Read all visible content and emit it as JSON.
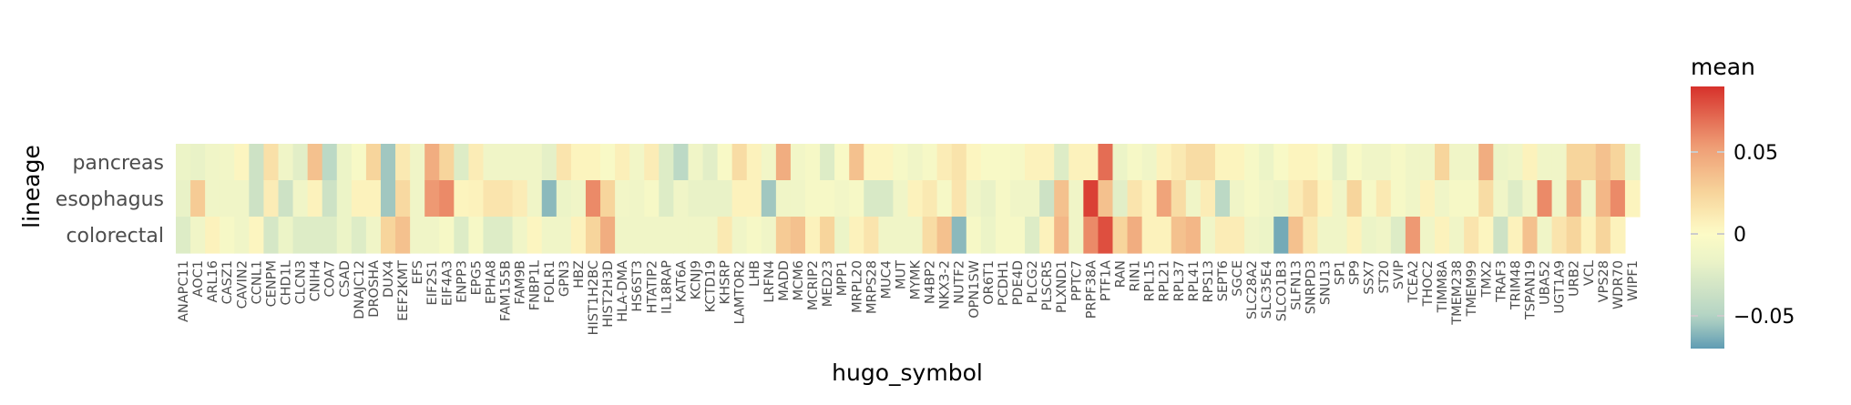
{
  "chart_data": {
    "type": "heatmap",
    "xlabel": "hugo_symbol",
    "ylabel": "lineage",
    "legend_title": "mean",
    "legend_position": "right",
    "colorbar_ticks": [
      {
        "value": 0.05,
        "label": "0.05"
      },
      {
        "value": 0,
        "label": "0"
      },
      {
        "value": -0.05,
        "label": "−0.05"
      }
    ],
    "value_range": [
      -0.07,
      0.09
    ],
    "colormap": [
      "#5f9cb3",
      "#b3d3c4",
      "#eaf3c7",
      "#fdfbc6",
      "#f7d39a",
      "#ee9a73",
      "#d7312b"
    ],
    "rows": [
      "pancreas",
      "esophagus",
      "colorectal"
    ],
    "columns": [
      "ANAPC11",
      "AOC1",
      "ARL16",
      "CASZ1",
      "CAVIN2",
      "CCNL1",
      "CENPM",
      "CHD1L",
      "CLCN3",
      "CNIH4",
      "COA7",
      "CSAD",
      "DNAJC12",
      "DROSHA",
      "DUX4",
      "EEF2KMT",
      "EFS",
      "EIF2S1",
      "EIF4A3",
      "ENPP3",
      "EPG5",
      "EPHA8",
      "FAM155B",
      "FAM9B",
      "FNBP1L",
      "FOLR1",
      "GPN3",
      "HBZ",
      "HIST1H2BC",
      "HIST2H3D",
      "HLA-DMA",
      "HS6ST3",
      "HTATIP2",
      "IL18RAP",
      "KAT6A",
      "KCNJ9",
      "KCTD19",
      "KHSRP",
      "LAMTOR2",
      "LHB",
      "LRFN4",
      "MADD",
      "MCM6",
      "MCRIP2",
      "MED23",
      "MPP1",
      "MRPL20",
      "MRPS28",
      "MUC4",
      "MUT",
      "MYMK",
      "N4BP2",
      "NKX3-2",
      "NUTF2",
      "OPN1SW",
      "OR6T1",
      "PCDH1",
      "PDE4D",
      "PLCG2",
      "PLSCR5",
      "PLXND1",
      "PPTC7",
      "PRPF38A",
      "PTF1A",
      "RAN",
      "RIN1",
      "RPL15",
      "RPL21",
      "RPL37",
      "RPL41",
      "RPS13",
      "SEPT6",
      "SGCE",
      "SLC28A2",
      "SLC35E4",
      "SLCO1B3",
      "SLFN13",
      "SNRPD3",
      "SNU13",
      "SP1",
      "SP9",
      "SSX7",
      "ST20",
      "SVIP",
      "TCEA2",
      "THOC2",
      "TIMM8A",
      "TMEM238",
      "TMEM99",
      "TMX2",
      "TRAF3",
      "TRIM48",
      "TSPAN19",
      "UBA52",
      "UGT1A9",
      "URB2",
      "VCL",
      "VPS28",
      "WDR70",
      "WIPF1"
    ],
    "values": [
      [
        -0.015,
        -0.018,
        -0.012,
        -0.01,
        0.004,
        -0.035,
        0.018,
        -0.012,
        -0.022,
        0.035,
        -0.045,
        -0.015,
        -0.005,
        0.025,
        -0.055,
        0.012,
        -0.012,
        0.045,
        0.025,
        -0.025,
        0.01,
        -0.012,
        -0.012,
        -0.012,
        -0.012,
        -0.02,
        0.015,
        0.005,
        0.005,
        -0.004,
        0.008,
        -0.01,
        0.01,
        -0.025,
        -0.045,
        -0.012,
        -0.022,
        -0.004,
        0.02,
        0.006,
        -0.01,
        0.045,
        -0.01,
        -0.006,
        -0.025,
        -0.004,
        0.035,
        0.004,
        0.004,
        -0.006,
        -0.012,
        -0.006,
        0.01,
        0.016,
        0.004,
        -0.004,
        -0.004,
        -0.006,
        0.006,
        0.006,
        -0.025,
        0.006,
        0.006,
        0.07,
        -0.015,
        -0.006,
        -0.012,
        0.006,
        0.012,
        0.02,
        0.02,
        0.005,
        0.005,
        -0.006,
        -0.015,
        -0.004,
        0.005,
        0.005,
        -0.004,
        -0.02,
        -0.004,
        -0.012,
        -0.012,
        -0.006,
        -0.012,
        -0.012,
        0.025,
        -0.012,
        -0.012,
        0.045,
        -0.015,
        -0.012,
        0.006,
        -0.012,
        -0.012,
        0.025,
        0.025,
        0.035,
        0.025,
        -0.015
      ],
      [
        -0.018,
        0.03,
        -0.012,
        -0.012,
        -0.012,
        -0.035,
        0.01,
        -0.035,
        -0.012,
        0.006,
        -0.035,
        -0.015,
        0.006,
        0.006,
        -0.055,
        0.022,
        -0.012,
        0.055,
        0.06,
        0.005,
        0.006,
        0.015,
        0.015,
        0.01,
        -0.012,
        -0.06,
        -0.015,
        -0.012,
        0.06,
        0.025,
        -0.01,
        -0.012,
        -0.006,
        -0.025,
        -0.012,
        -0.018,
        -0.018,
        -0.018,
        0.006,
        0.006,
        -0.055,
        -0.012,
        -0.012,
        -0.006,
        -0.006,
        -0.01,
        -0.006,
        -0.028,
        -0.028,
        -0.012,
        0.006,
        0.012,
        -0.006,
        0.015,
        -0.012,
        -0.018,
        -0.006,
        -0.012,
        -0.012,
        -0.035,
        0.035,
        -0.012,
        0.085,
        0.035,
        -0.022,
        0.015,
        0.006,
        0.05,
        0.02,
        -0.012,
        0.01,
        -0.045,
        -0.012,
        -0.006,
        -0.012,
        -0.015,
        0.01,
        0.02,
        0.005,
        -0.012,
        0.025,
        -0.006,
        0.012,
        -0.006,
        -0.012,
        0.006,
        -0.012,
        -0.006,
        -0.006,
        0.02,
        -0.012,
        -0.025,
        -0.012,
        0.06,
        -0.012,
        0.045,
        -0.012,
        0.04,
        0.06,
        0.005
      ],
      [
        -0.025,
        -0.012,
        0.006,
        -0.006,
        -0.012,
        0.004,
        -0.03,
        -0.015,
        -0.025,
        -0.025,
        -0.025,
        -0.015,
        -0.025,
        -0.012,
        0.025,
        0.035,
        -0.012,
        -0.012,
        -0.006,
        -0.025,
        -0.006,
        -0.025,
        -0.025,
        -0.012,
        0.004,
        -0.012,
        -0.012,
        0.006,
        0.025,
        0.045,
        -0.012,
        -0.012,
        -0.012,
        -0.012,
        -0.012,
        -0.012,
        -0.012,
        0.012,
        -0.012,
        -0.006,
        -0.012,
        0.03,
        0.035,
        0.006,
        0.025,
        -0.015,
        0.006,
        0.015,
        -0.012,
        -0.012,
        -0.012,
        0.02,
        0.035,
        -0.06,
        -0.006,
        -0.015,
        -0.006,
        -0.006,
        -0.025,
        0.006,
        0.04,
        -0.012,
        0.06,
        0.08,
        0.025,
        0.045,
        0.006,
        0.006,
        0.035,
        0.04,
        -0.012,
        0.01,
        0.01,
        -0.012,
        -0.015,
        -0.065,
        0.035,
        0.012,
        -0.012,
        -0.012,
        0.006,
        -0.015,
        -0.012,
        -0.025,
        0.055,
        -0.012,
        0.006,
        -0.012,
        0.015,
        0.004,
        -0.035,
        0.006,
        0.035,
        -0.012,
        0.015,
        0.025,
        0.006,
        0.025,
        0.006
      ]
    ]
  }
}
